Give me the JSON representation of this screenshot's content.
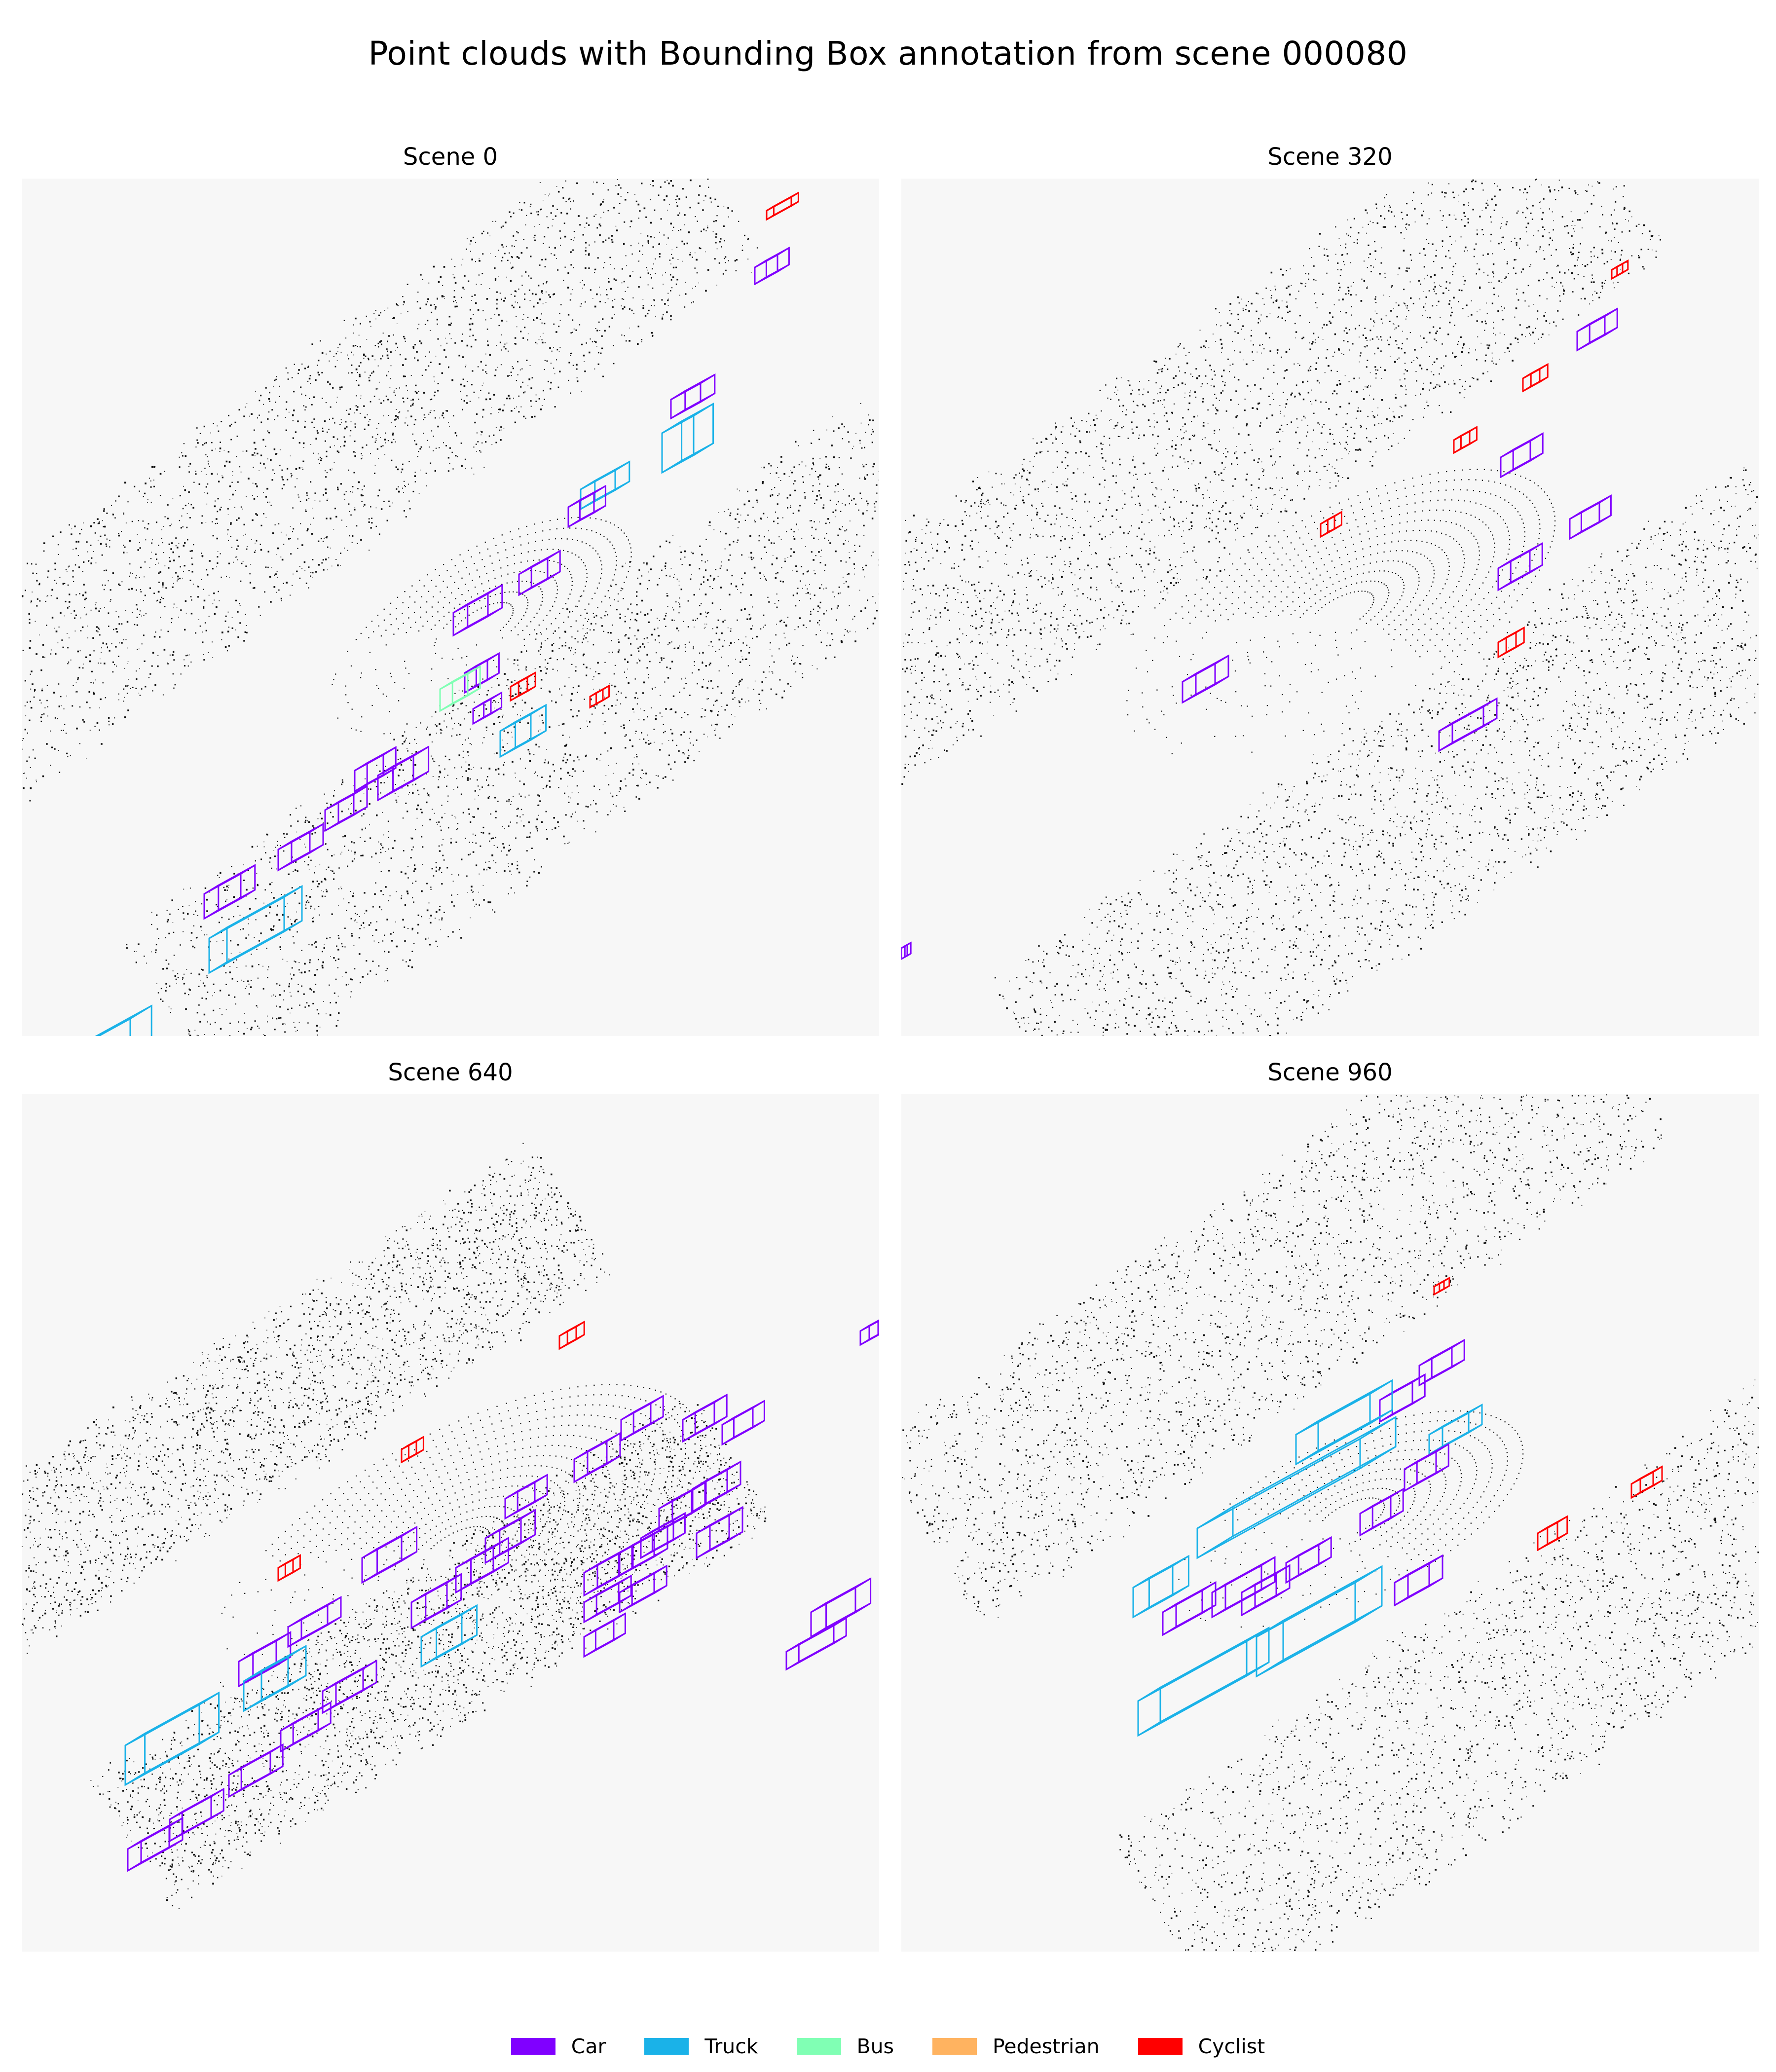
{
  "title": "Point clouds with Bounding Box annotation from scene 000080",
  "panels": [
    {
      "title": "Scene 0"
    },
    {
      "title": "Scene 320"
    },
    {
      "title": "Scene 640"
    },
    {
      "title": "Scene 960"
    }
  ],
  "legend": [
    {
      "label": "Car",
      "color": "#8000ff"
    },
    {
      "label": "Truck",
      "color": "#1ab2e8"
    },
    {
      "label": "Bus",
      "color": "#80ffb4"
    },
    {
      "label": "Pedestrian",
      "color": "#ffb360"
    },
    {
      "label": "Cyclist",
      "color": "#ff0000"
    }
  ]
}
